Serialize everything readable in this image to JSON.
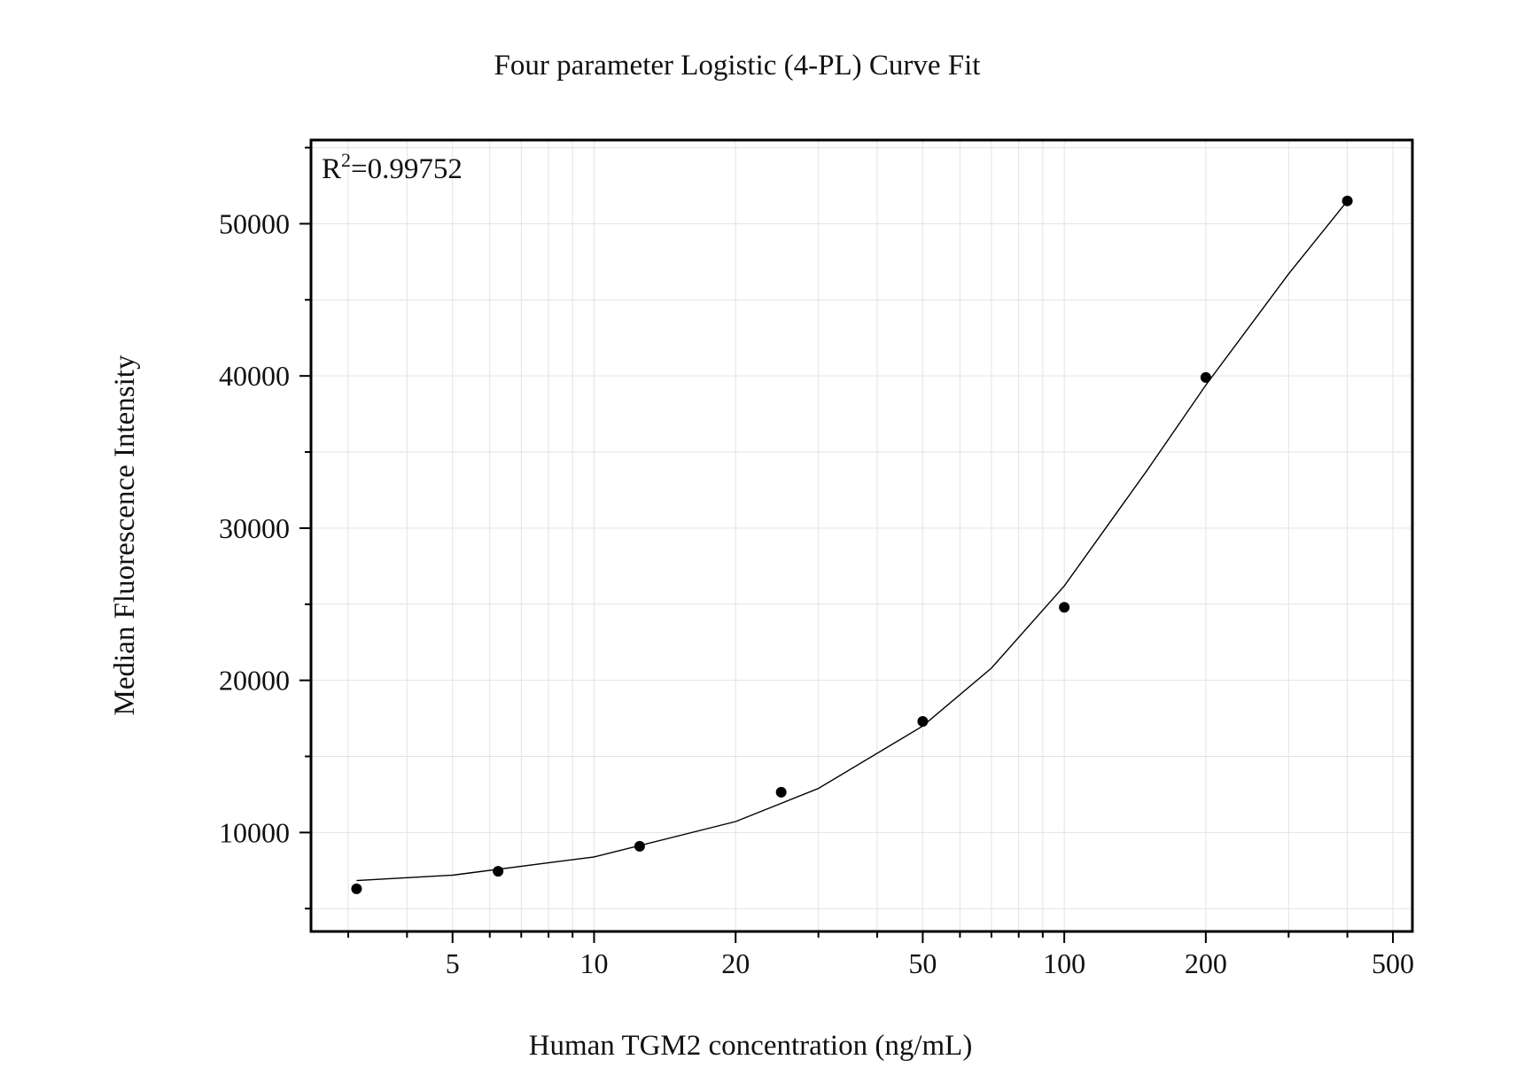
{
  "chart_data": {
    "type": "scatter",
    "title": "Four parameter Logistic (4-PL) Curve Fit",
    "xlabel": "Human TGM2 concentration (ng/mL)",
    "ylabel": "Median Fluorescence Intensity",
    "annotation": {
      "prefix": "R",
      "superscript": "2",
      "text": "=0.99752"
    },
    "x_scale": "log",
    "xlim": [
      2.5,
      550
    ],
    "ylim": [
      3500,
      55500
    ],
    "x_ticks": [
      5,
      10,
      20,
      50,
      100,
      200,
      500
    ],
    "x_tick_labels": [
      "5",
      "10",
      "20",
      "50",
      "100",
      "200",
      "500"
    ],
    "y_ticks": [
      10000,
      20000,
      30000,
      40000,
      50000
    ],
    "y_tick_labels": [
      "10000",
      "20000",
      "30000",
      "40000",
      "50000"
    ],
    "grid": true,
    "series": [
      {
        "type": "scatter",
        "x": [
          3.125,
          6.25,
          12.5,
          25,
          50,
          100,
          200,
          400
        ],
        "y": [
          6300,
          7450,
          9100,
          12650,
          17300,
          24800,
          39900,
          51500
        ]
      },
      {
        "type": "line",
        "x": [
          3.125,
          5,
          10,
          20,
          30,
          50,
          70,
          100,
          150,
          200,
          300,
          400
        ],
        "y": [
          6840,
          7200,
          8400,
          10720,
          12900,
          17000,
          20800,
          26200,
          33800,
          39400,
          46700,
          51500
        ]
      }
    ],
    "colors": {
      "points": "#000000",
      "curve": "#000000",
      "grid": "#e3e3e3"
    }
  }
}
